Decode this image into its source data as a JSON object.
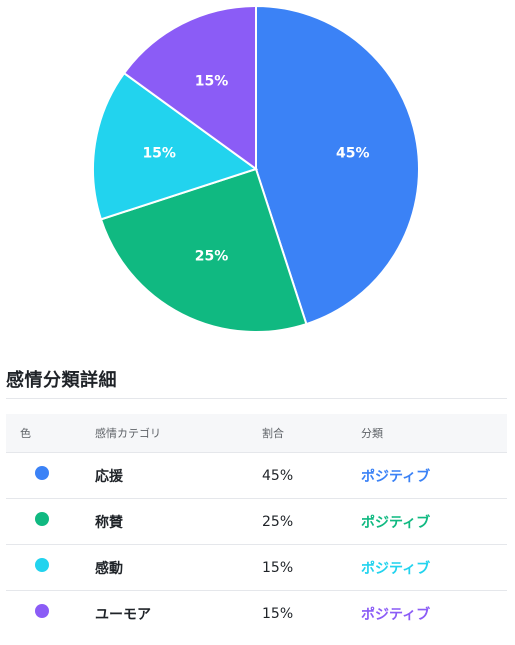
{
  "chart_data": {
    "type": "pie",
    "title": "",
    "categories": [
      "応援",
      "称賛",
      "感動",
      "ユーモア"
    ],
    "values": [
      45,
      25,
      15,
      15
    ],
    "labels": [
      "45%",
      "25%",
      "15%",
      "15%"
    ],
    "colors": [
      "#3b82f6",
      "#10b981",
      "#22d3ee",
      "#8b5cf6"
    ],
    "start_angle": "12 o'clock",
    "direction": "clockwise",
    "legend": "none"
  },
  "section": {
    "title": "感情分類詳細"
  },
  "table": {
    "headers": [
      "色",
      "感情カテゴリ",
      "割合",
      "分類"
    ],
    "rows": [
      {
        "color": "#3b82f6",
        "name": "応援",
        "ratio": "45%",
        "category": "ポジティブ"
      },
      {
        "color": "#10b981",
        "name": "称賛",
        "ratio": "25%",
        "category": "ポジティブ"
      },
      {
        "color": "#22d3ee",
        "name": "感動",
        "ratio": "15%",
        "category": "ポジティブ"
      },
      {
        "color": "#8b5cf6",
        "name": "ユーモア",
        "ratio": "15%",
        "category": "ポジティブ"
      }
    ]
  }
}
